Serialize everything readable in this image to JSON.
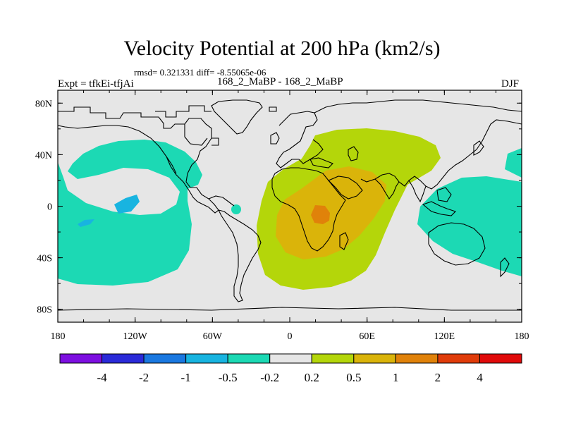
{
  "header": {
    "title": "Velocity Potential at 200 hPa (km2/s)",
    "stats": "rmsd= 0.321331 diff= -8.55065e-06",
    "expt": "Expt = tfkEi-tfjAi",
    "subtitle": "168_2_MaBP - 168_2_MaBP",
    "season": "DJF"
  },
  "map": {
    "projection": "cylindrical-equidistant",
    "lon_range": [
      -180,
      180
    ],
    "lat_range": [
      -90,
      90
    ],
    "lon_ticks": [
      {
        "value": -180,
        "label": "180"
      },
      {
        "value": -120,
        "label": "120W"
      },
      {
        "value": -60,
        "label": "60W"
      },
      {
        "value": 0,
        "label": "0"
      },
      {
        "value": 60,
        "label": "60E"
      },
      {
        "value": 120,
        "label": "120E"
      },
      {
        "value": 180,
        "label": "180"
      }
    ],
    "lat_ticks": [
      {
        "value": 80,
        "label": "80N"
      },
      {
        "value": 40,
        "label": "40N"
      },
      {
        "value": 0,
        "label": "0"
      },
      {
        "value": -40,
        "label": "40S"
      },
      {
        "value": -80,
        "label": "80S"
      }
    ],
    "background_color": "#e6e6e6"
  },
  "colorbar": {
    "colors": [
      "#7d0fe0",
      "#2a2ad8",
      "#1a78e0",
      "#18b4e0",
      "#1cd9b4",
      "#e6e6e6",
      "#b4d60a",
      "#dab40a",
      "#e0820a",
      "#e03c0a",
      "#e00a0a"
    ],
    "labels": [
      "-4",
      "-2",
      "-1",
      "-0.5",
      "-0.2",
      "0.2",
      "0.5",
      "1",
      "2",
      "4"
    ]
  }
}
